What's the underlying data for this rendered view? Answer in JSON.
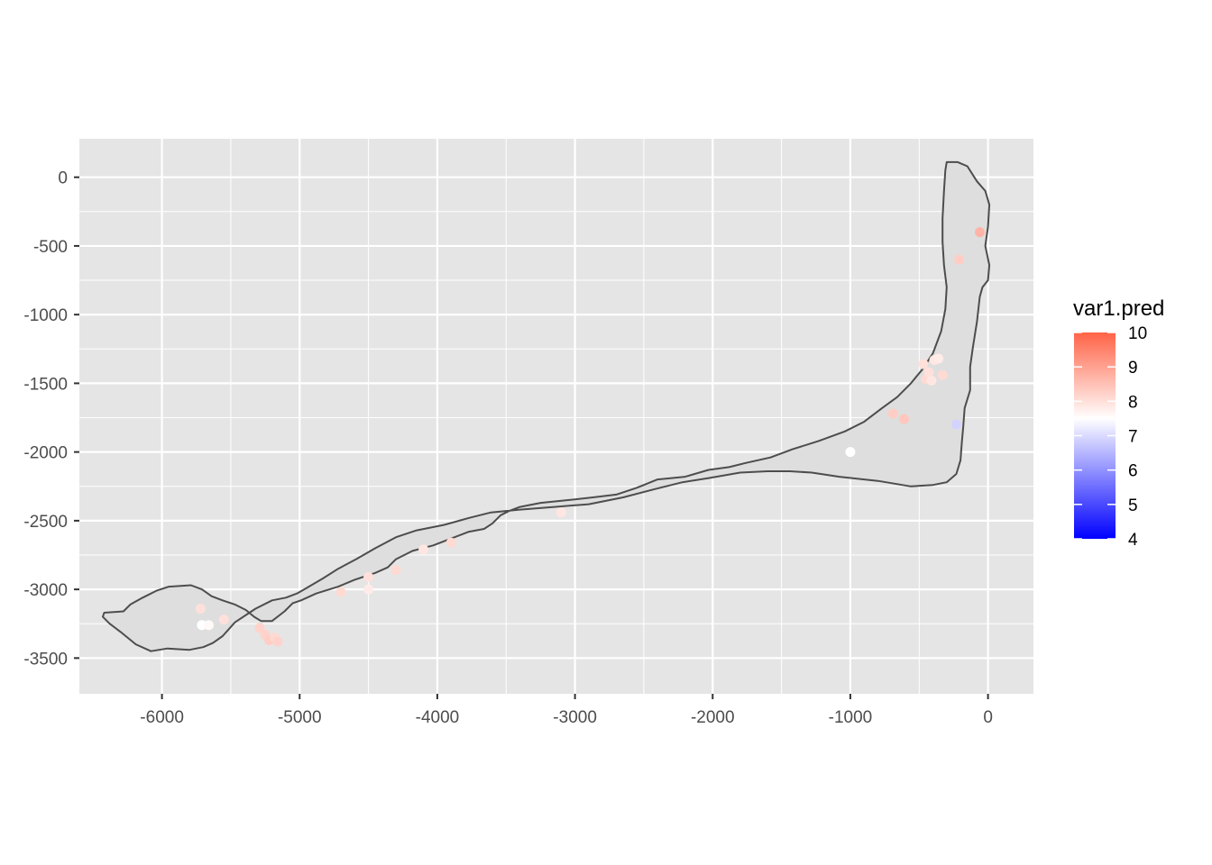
{
  "chart_data": {
    "type": "scatter",
    "title": "",
    "xlabel": "",
    "ylabel": "",
    "xlim": [
      -6600,
      330
    ],
    "ylim": [
      -3760,
      280
    ],
    "x_ticks": [
      -6000,
      -5000,
      -4000,
      -3000,
      -2000,
      -1000,
      0
    ],
    "y_ticks": [
      0,
      -500,
      -1000,
      -1500,
      -2000,
      -2500,
      -3000,
      -3500
    ],
    "x_tick_labels": [
      "-6000",
      "-5000",
      "-4000",
      "-3000",
      "-2000",
      "-1000",
      "0"
    ],
    "y_tick_labels": [
      "0",
      "-500",
      "-1000",
      "-1500",
      "-2000",
      "-2500",
      "-3000",
      "-3500"
    ],
    "grid": true,
    "legend": {
      "title": "var1.pred",
      "position": "right",
      "type": "colorbar",
      "range": [
        4,
        10
      ],
      "midpoint": 7.5,
      "colors": {
        "low": "#0000ff",
        "mid": "#ffffff",
        "high": "#ff6347"
      },
      "ticks": [
        10,
        9,
        8,
        7,
        6,
        5,
        4
      ],
      "tick_labels": [
        "10",
        "9",
        "8",
        "7",
        "6",
        "5",
        "4"
      ]
    },
    "colors": {
      "panel_bg": "#e5e5e5",
      "grid_line": "#ffffff",
      "boundary_fill": "#dedede",
      "boundary_stroke": "#4d4d4d",
      "tick_text": "#4d4d4d"
    },
    "boundary": [
      [
        -6280,
        -3160
      ],
      [
        -6230,
        -3110
      ],
      [
        -6140,
        -3060
      ],
      [
        -6040,
        -3010
      ],
      [
        -5950,
        -2980
      ],
      [
        -5790,
        -2970
      ],
      [
        -5710,
        -3000
      ],
      [
        -5640,
        -3050
      ],
      [
        -5560,
        -3080
      ],
      [
        -5470,
        -3110
      ],
      [
        -5390,
        -3150
      ],
      [
        -5330,
        -3200
      ],
      [
        -5280,
        -3230
      ],
      [
        -5200,
        -3230
      ],
      [
        -5110,
        -3160
      ],
      [
        -5050,
        -3100
      ],
      [
        -4990,
        -3080
      ],
      [
        -4880,
        -3030
      ],
      [
        -4720,
        -2980
      ],
      [
        -4600,
        -2930
      ],
      [
        -4450,
        -2880
      ],
      [
        -4360,
        -2840
      ],
      [
        -4300,
        -2780
      ],
      [
        -4180,
        -2720
      ],
      [
        -4030,
        -2680
      ],
      [
        -3900,
        -2630
      ],
      [
        -3770,
        -2580
      ],
      [
        -3660,
        -2560
      ],
      [
        -3600,
        -2520
      ],
      [
        -3540,
        -2460
      ],
      [
        -3480,
        -2430
      ],
      [
        -3400,
        -2400
      ],
      [
        -3250,
        -2370
      ],
      [
        -3050,
        -2350
      ],
      [
        -2870,
        -2330
      ],
      [
        -2700,
        -2310
      ],
      [
        -2550,
        -2260
      ],
      [
        -2400,
        -2200
      ],
      [
        -2200,
        -2180
      ],
      [
        -2030,
        -2130
      ],
      [
        -1880,
        -2110
      ],
      [
        -1760,
        -2080
      ],
      [
        -1580,
        -2040
      ],
      [
        -1420,
        -1980
      ],
      [
        -1230,
        -1920
      ],
      [
        -1040,
        -1850
      ],
      [
        -900,
        -1780
      ],
      [
        -770,
        -1680
      ],
      [
        -660,
        -1600
      ],
      [
        -560,
        -1500
      ],
      [
        -470,
        -1390
      ],
      [
        -400,
        -1280
      ],
      [
        -340,
        -1120
      ],
      [
        -310,
        -960
      ],
      [
        -300,
        -800
      ],
      [
        -320,
        -640
      ],
      [
        -330,
        -470
      ],
      [
        -330,
        -300
      ],
      [
        -320,
        -100
      ],
      [
        -310,
        50
      ],
      [
        -300,
        110
      ],
      [
        -220,
        110
      ],
      [
        -150,
        80
      ],
      [
        -80,
        -30
      ],
      [
        -20,
        -100
      ],
      [
        10,
        -200
      ],
      [
        0,
        -360
      ],
      [
        -20,
        -500
      ],
      [
        10,
        -640
      ],
      [
        0,
        -750
      ],
      [
        -40,
        -800
      ],
      [
        -60,
        -870
      ],
      [
        -80,
        -1050
      ],
      [
        -110,
        -1240
      ],
      [
        -130,
        -1380
      ],
      [
        -130,
        -1550
      ],
      [
        -170,
        -1680
      ],
      [
        -180,
        -1820
      ],
      [
        -190,
        -1930
      ],
      [
        -200,
        -2060
      ],
      [
        -230,
        -2160
      ],
      [
        -300,
        -2220
      ],
      [
        -400,
        -2240
      ],
      [
        -560,
        -2250
      ],
      [
        -800,
        -2210
      ],
      [
        -1080,
        -2180
      ],
      [
        -1280,
        -2150
      ],
      [
        -1440,
        -2140
      ],
      [
        -1600,
        -2140
      ],
      [
        -1800,
        -2150
      ],
      [
        -2030,
        -2190
      ],
      [
        -2220,
        -2220
      ],
      [
        -2420,
        -2270
      ],
      [
        -2650,
        -2330
      ],
      [
        -2900,
        -2380
      ],
      [
        -3150,
        -2400
      ],
      [
        -3410,
        -2420
      ],
      [
        -3610,
        -2440
      ],
      [
        -3770,
        -2480
      ],
      [
        -3950,
        -2530
      ],
      [
        -4150,
        -2570
      ],
      [
        -4300,
        -2620
      ],
      [
        -4450,
        -2700
      ],
      [
        -4590,
        -2780
      ],
      [
        -4720,
        -2850
      ],
      [
        -4830,
        -2920
      ],
      [
        -4950,
        -2990
      ],
      [
        -5020,
        -3030
      ],
      [
        -5100,
        -3060
      ],
      [
        -5200,
        -3080
      ],
      [
        -5320,
        -3140
      ],
      [
        -5470,
        -3240
      ],
      [
        -5560,
        -3340
      ],
      [
        -5630,
        -3390
      ],
      [
        -5700,
        -3420
      ],
      [
        -5800,
        -3440
      ],
      [
        -5960,
        -3430
      ],
      [
        -6080,
        -3450
      ],
      [
        -6190,
        -3400
      ],
      [
        -6300,
        -3310
      ],
      [
        -6380,
        -3250
      ],
      [
        -6430,
        -3200
      ],
      [
        -6420,
        -3170
      ],
      [
        -6280,
        -3160
      ]
    ],
    "points": [
      {
        "x": -5720,
        "y": -3140,
        "value": 8.0
      },
      {
        "x": -5710,
        "y": -3260,
        "value": 7.5
      },
      {
        "x": -5660,
        "y": -3260,
        "value": 7.6
      },
      {
        "x": -5550,
        "y": -3220,
        "value": 8.0
      },
      {
        "x": -5290,
        "y": -3280,
        "value": 8.2
      },
      {
        "x": -5250,
        "y": -3330,
        "value": 8.2
      },
      {
        "x": -5220,
        "y": -3370,
        "value": 8.3
      },
      {
        "x": -5180,
        "y": -3350,
        "value": 8.1
      },
      {
        "x": -5160,
        "y": -3380,
        "value": 8.2
      },
      {
        "x": -4700,
        "y": -3020,
        "value": 8.1
      },
      {
        "x": -4500,
        "y": -2910,
        "value": 8.0
      },
      {
        "x": -4500,
        "y": -3000,
        "value": 7.8
      },
      {
        "x": -4300,
        "y": -2860,
        "value": 8.1
      },
      {
        "x": -4100,
        "y": -2710,
        "value": 7.9
      },
      {
        "x": -3900,
        "y": -2660,
        "value": 8.1
      },
      {
        "x": -3100,
        "y": -2440,
        "value": 7.9
      },
      {
        "x": -1000,
        "y": -2000,
        "value": 7.5
      },
      {
        "x": -690,
        "y": -1720,
        "value": 8.3
      },
      {
        "x": -610,
        "y": -1760,
        "value": 8.4
      },
      {
        "x": -470,
        "y": -1360,
        "value": 8.0
      },
      {
        "x": -450,
        "y": -1470,
        "value": 8.1
      },
      {
        "x": -430,
        "y": -1420,
        "value": 8.0
      },
      {
        "x": -410,
        "y": -1480,
        "value": 7.9
      },
      {
        "x": -390,
        "y": -1330,
        "value": 7.9
      },
      {
        "x": -360,
        "y": -1320,
        "value": 7.8
      },
      {
        "x": -330,
        "y": -1440,
        "value": 8.1
      },
      {
        "x": -230,
        "y": -1800,
        "value": 6.9
      },
      {
        "x": -210,
        "y": -600,
        "value": 8.3
      },
      {
        "x": -60,
        "y": -400,
        "value": 8.7
      }
    ]
  }
}
